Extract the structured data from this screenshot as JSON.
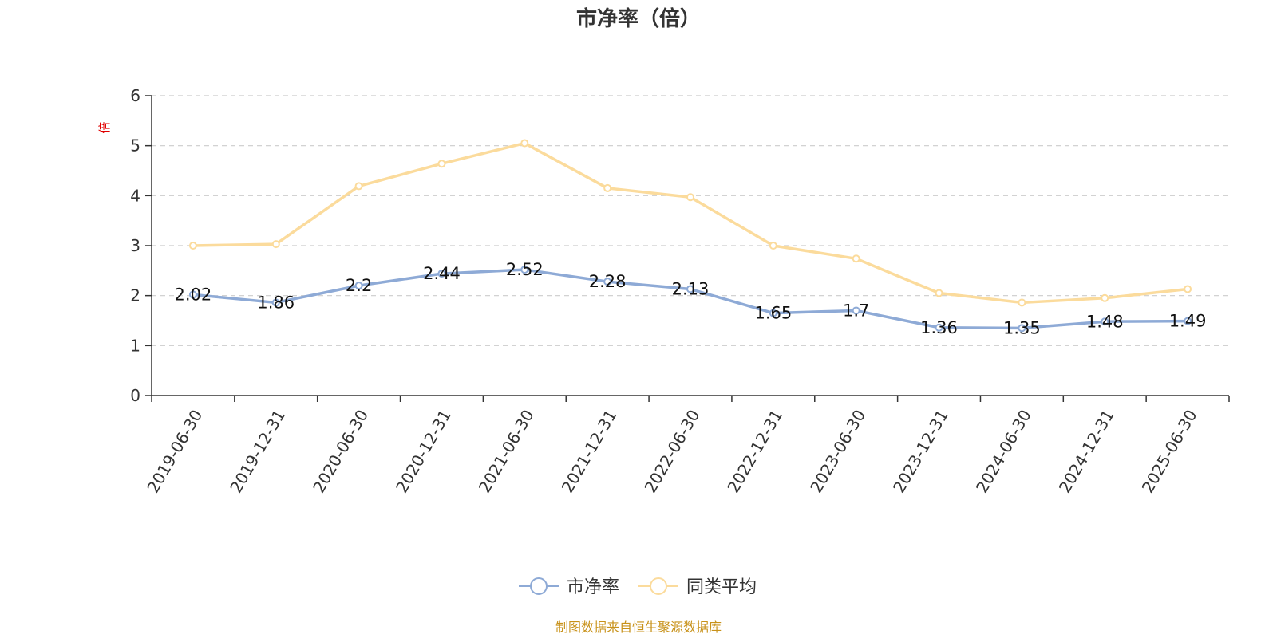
{
  "chart_data": {
    "type": "line",
    "title": "市净率（倍）",
    "ylabel": "倍",
    "ylim": [
      0,
      6
    ],
    "yticks": [
      0,
      1,
      2,
      3,
      4,
      5,
      6
    ],
    "grid": true,
    "legend_position": "bottom-center",
    "categories": [
      "2019-06-30",
      "2019-12-31",
      "2020-06-30",
      "2020-12-31",
      "2021-06-30",
      "2021-12-31",
      "2022-06-30",
      "2022-12-31",
      "2023-06-30",
      "2023-12-31",
      "2024-06-30",
      "2024-12-31",
      "2025-06-30"
    ],
    "series": [
      {
        "name": "市净率",
        "color": "#8eaad6",
        "values": [
          2.02,
          1.86,
          2.2,
          2.44,
          2.52,
          2.28,
          2.13,
          1.65,
          1.7,
          1.36,
          1.35,
          1.48,
          1.49
        ],
        "labels": [
          "2.02",
          "1.86",
          "2.2",
          "2.44",
          "2.52",
          "2.28",
          "2.13",
          "1.65",
          "1.7",
          "1.36",
          "1.35",
          "1.48",
          "1.49"
        ],
        "show_labels": true
      },
      {
        "name": "同类平均",
        "color": "#fbdb9c",
        "values": [
          3.0,
          3.03,
          4.19,
          4.64,
          5.05,
          4.15,
          3.97,
          3.0,
          2.74,
          2.05,
          1.86,
          1.95,
          2.13
        ],
        "show_labels": false
      }
    ]
  },
  "colors": {
    "axis": "#333333",
    "grid": "#cccccc",
    "ylabel": "#e00000",
    "source": "#c8921a"
  },
  "source_text": "制图数据来自恒生聚源数据库"
}
